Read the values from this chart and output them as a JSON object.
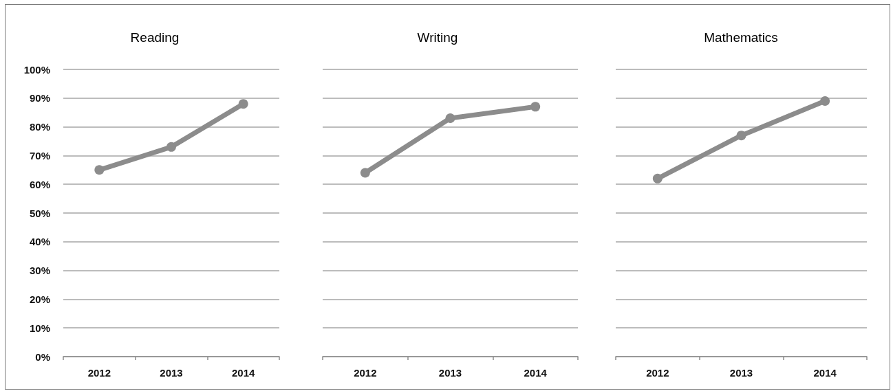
{
  "chart_data": [
    {
      "type": "line",
      "title": "Reading",
      "categories": [
        "2012",
        "2013",
        "2014"
      ],
      "series": [
        {
          "color": "#8c8c8c",
          "values": [
            65,
            73,
            88
          ]
        }
      ],
      "ylim": [
        0,
        100
      ],
      "yticks": [
        {
          "value": 0,
          "label": "0%"
        },
        {
          "value": 10,
          "label": "10%"
        },
        {
          "value": 20,
          "label": "20%"
        },
        {
          "value": 30,
          "label": "30%"
        },
        {
          "value": 40,
          "label": "40%"
        },
        {
          "value": 50,
          "label": "50%"
        },
        {
          "value": 60,
          "label": "60%"
        },
        {
          "value": 70,
          "label": "70%"
        },
        {
          "value": 80,
          "label": "80%"
        },
        {
          "value": 90,
          "label": "90%"
        },
        {
          "value": 100,
          "label": "100%"
        }
      ],
      "grid": "y",
      "marker": "circle",
      "line_style": "solid"
    },
    {
      "type": "line",
      "title": "Writing",
      "categories": [
        "2012",
        "2013",
        "2014"
      ],
      "series": [
        {
          "color": "#8c8c8c",
          "values": [
            64,
            83,
            87
          ]
        }
      ],
      "ylim": [
        0,
        100
      ],
      "yticks": [
        0,
        10,
        20,
        30,
        40,
        50,
        60,
        70,
        80,
        90,
        100
      ],
      "grid": "y",
      "marker": "circle",
      "line_style": "solid",
      "tick_labels": "x"
    },
    {
      "type": "line",
      "title": "Mathematics",
      "categories": [
        "2012",
        "2013",
        "2014"
      ],
      "series": [
        {
          "color": "#8c8c8c",
          "values": [
            62,
            77,
            89
          ]
        }
      ],
      "ylim": [
        0,
        100
      ],
      "yticks": [
        0,
        10,
        20,
        30,
        40,
        50,
        60,
        70,
        80,
        90,
        100
      ],
      "grid": "y",
      "marker": "circle",
      "line_style": "solid",
      "tick_labels": "x"
    }
  ]
}
